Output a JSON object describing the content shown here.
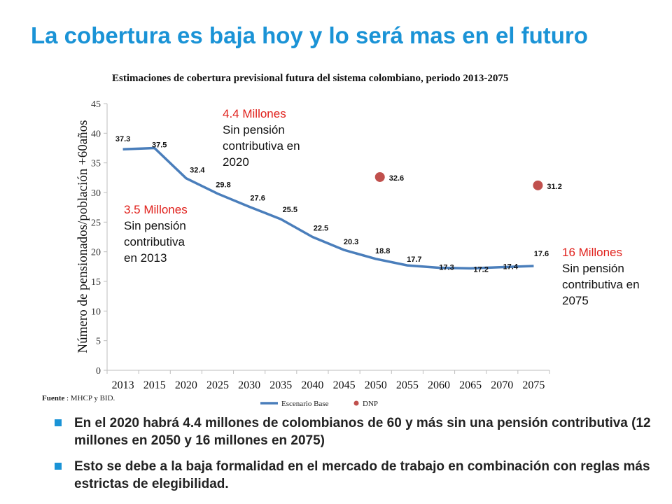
{
  "slide": {
    "title": "La cobertura es baja hoy y lo será mas en el futuro",
    "bullets": [
      "En el 2020 habrá 4.4 millones de colombianos de 60 y más sin una pensión contributiva (12 millones en 2050 y 16 millones en 2075)",
      "Esto se debe a la baja formalidad en el mercado de trabajo en combinación con reglas más estrictas de elegibilidad."
    ],
    "accent_color": "#1a93d6"
  },
  "chart_data": {
    "type": "line",
    "title": "Estimaciones de cobertura previsional futura del sistema colombiano, periodo 2013-2075",
    "ylabel": "Número de pensionados/población +60años",
    "xlabel": "",
    "ylim": [
      0,
      45
    ],
    "yticks": [
      0,
      5,
      10,
      15,
      20,
      25,
      30,
      35,
      40,
      45
    ],
    "categories": [
      "2013",
      "2015",
      "2020",
      "2025",
      "2030",
      "2035",
      "2040",
      "2045",
      "2050",
      "2055",
      "2060",
      "2065",
      "2070",
      "2075"
    ],
    "grid": false,
    "legend": "bottom",
    "series": [
      {
        "name": "Escenario Base",
        "type": "line",
        "color": "#4a7ebb",
        "values": [
          37.3,
          37.5,
          32.4,
          29.8,
          27.6,
          25.5,
          22.5,
          20.3,
          18.8,
          17.7,
          17.3,
          17.2,
          17.4,
          17.6
        ]
      },
      {
        "name": "DNP",
        "type": "scatter",
        "color": "#c0504d",
        "values": [
          null,
          null,
          null,
          null,
          null,
          null,
          null,
          null,
          32.6,
          null,
          null,
          null,
          null,
          31.2
        ],
        "labels": [
          "32.6",
          "31.2"
        ]
      }
    ],
    "annotations": [
      {
        "headline": "4.4 Millones",
        "lines": [
          "Sin pensión",
          "contributiva en",
          "2020"
        ]
      },
      {
        "headline": "3.5 Millones",
        "lines": [
          "Sin pensión",
          "contributiva",
          "en 2013"
        ]
      },
      {
        "headline": "16 Millones",
        "lines": [
          "Sin pensión",
          "contributiva en",
          "2075"
        ]
      }
    ],
    "annotation_color": "#e0201b",
    "source": {
      "label": "Fuente",
      "text": ": MHCP y BID."
    }
  }
}
